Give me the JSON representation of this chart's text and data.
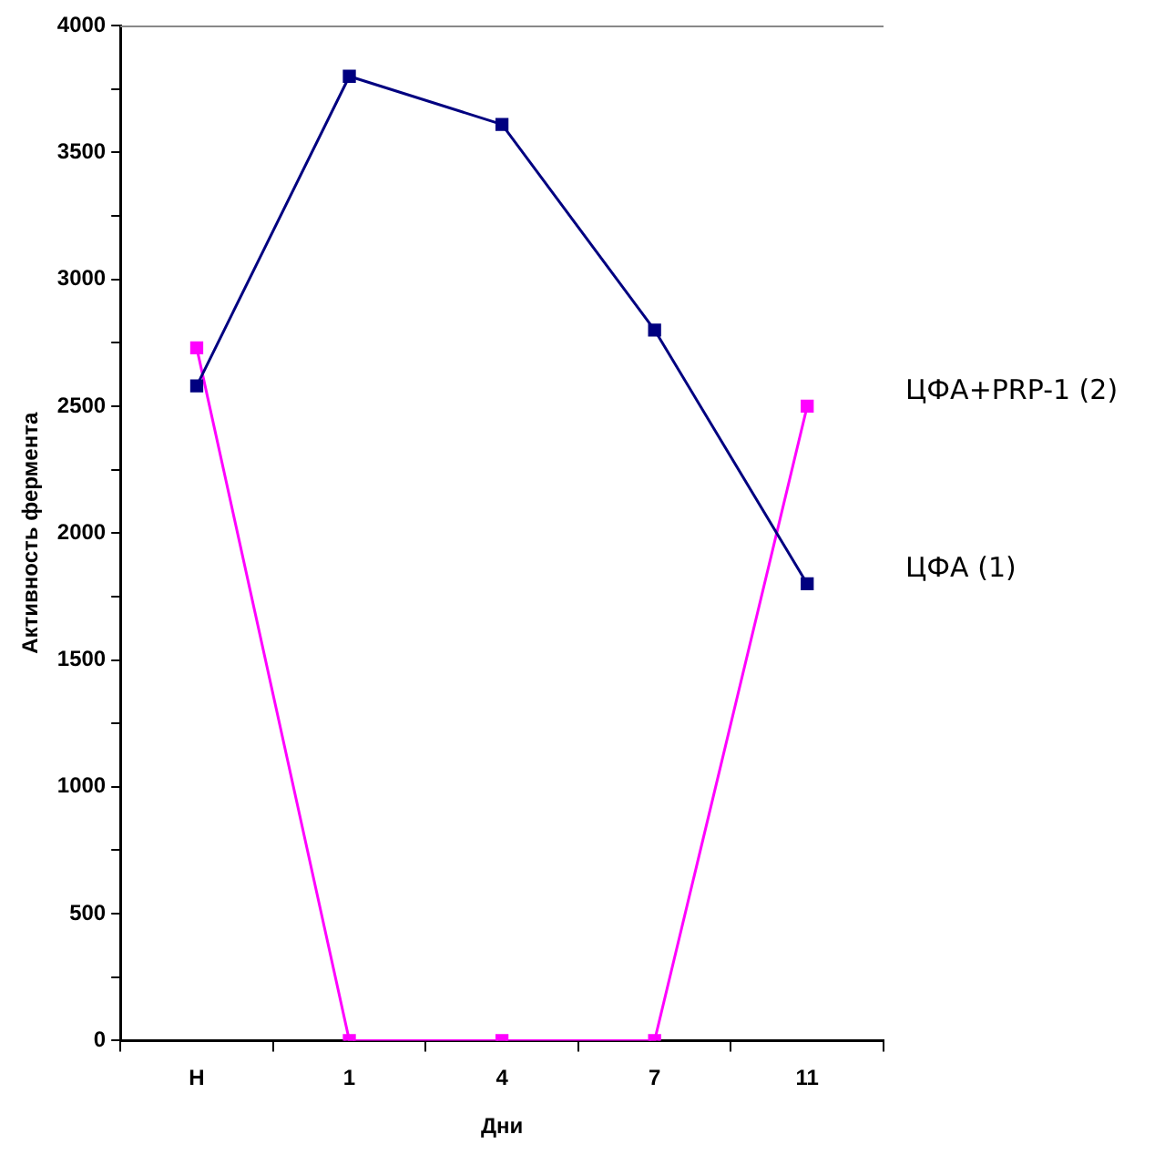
{
  "chart_data": {
    "type": "line",
    "xlabel": "Дни",
    "ylabel": "Активность фермента",
    "categories": [
      "Н",
      "1",
      "4",
      "7",
      "11"
    ],
    "series": [
      {
        "name": "ЦФА (1)",
        "color": "#000080",
        "values": [
          2580,
          3800,
          3610,
          2800,
          1800
        ]
      },
      {
        "name": "ЦФА+PRP-1 (2)",
        "color": "#ff00ff",
        "values": [
          2730,
          0,
          0,
          0,
          2500
        ]
      }
    ],
    "ylim": [
      0,
      4000
    ],
    "yticks": [
      0,
      {
        "value": 250,
        "label": null
      },
      500,
      {
        "value": 750,
        "label": null
      },
      1000,
      {
        "value": 1250,
        "label": null
      },
      1500,
      {
        "value": 1750,
        "label": null
      },
      2000,
      {
        "value": 2250,
        "label": null
      },
      2500,
      {
        "value": 2750,
        "label": null
      },
      3000,
      {
        "value": 3250,
        "label": null
      },
      3500,
      {
        "value": 3750,
        "label": null
      },
      4000
    ],
    "grid": false,
    "legend": false,
    "marker": "square",
    "line_style": "solid"
  }
}
